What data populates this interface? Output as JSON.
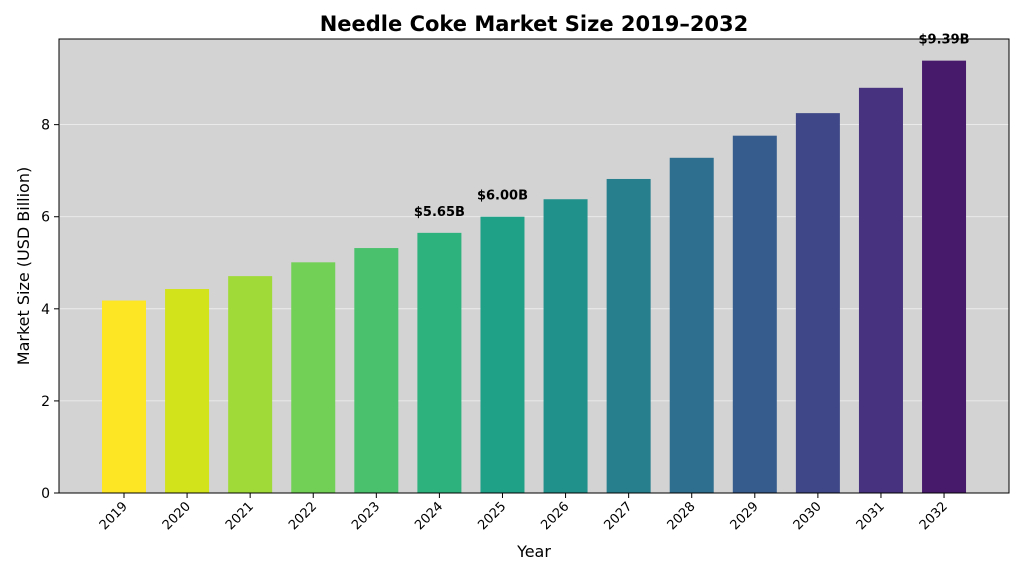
{
  "chart_data": {
    "type": "bar",
    "title": "Needle Coke Market Size 2019–2032",
    "xlabel": "Year",
    "ylabel": "Market Size (USD Billion)",
    "ylim": [
      0,
      9.86
    ],
    "yticks": [
      0,
      2,
      4,
      6,
      8
    ],
    "grid": true,
    "categories": [
      "2019",
      "2020",
      "2021",
      "2022",
      "2023",
      "2024",
      "2025",
      "2026",
      "2027",
      "2028",
      "2029",
      "2030",
      "2031",
      "2032"
    ],
    "values": [
      4.18,
      4.43,
      4.71,
      5.01,
      5.32,
      5.65,
      6.0,
      6.38,
      6.82,
      7.28,
      7.76,
      8.25,
      8.8,
      9.39
    ],
    "colors": [
      "#fde725",
      "#d2e21b",
      "#a0da39",
      "#73d056",
      "#4ac16d",
      "#2db27d",
      "#1fa187",
      "#21918c",
      "#277f8e",
      "#2e6e8e",
      "#365c8d",
      "#3f4788",
      "#46327e",
      "#481a6c"
    ],
    "data_labels": [
      {
        "index": 5,
        "text": "$5.65B"
      },
      {
        "index": 6,
        "text": "$6.00B"
      },
      {
        "index": 13,
        "text": "$9.39B"
      }
    ],
    "background": "#d3d3d3"
  }
}
